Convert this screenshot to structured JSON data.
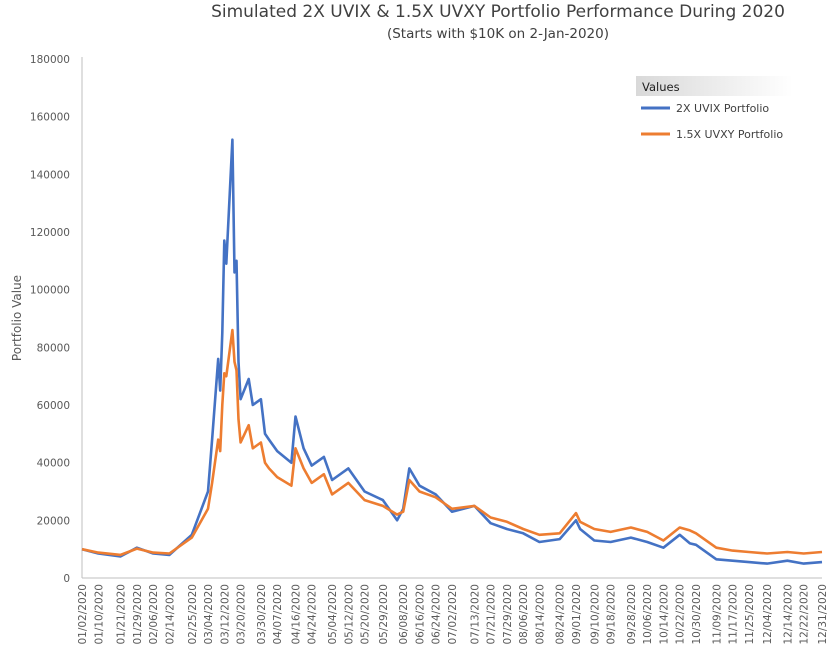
{
  "chart_data": {
    "type": "line",
    "title": "Simulated 2X UVIX & 1.5X UVXY Portfolio Performance During 2020",
    "subtitle": "(Starts with $10K on 2-Jan-2020)",
    "xlabel": "",
    "ylabel": "Portfolio Value",
    "ylim": [
      0,
      180000
    ],
    "yticks": [
      0,
      20000,
      40000,
      60000,
      80000,
      100000,
      120000,
      140000,
      160000,
      180000
    ],
    "grid": false,
    "legend_title": "Values",
    "legend_position": "top-right",
    "x_tick_labels": [
      "01/02/2020",
      "01/10/2020",
      "01/21/2020",
      "01/29/2020",
      "02/06/2020",
      "02/14/2020",
      "02/25/2020",
      "03/04/2020",
      "03/12/2020",
      "03/20/2020",
      "03/30/2020",
      "04/07/2020",
      "04/16/2020",
      "04/24/2020",
      "05/04/2020",
      "05/12/2020",
      "05/20/2020",
      "05/29/2020",
      "06/08/2020",
      "06/16/2020",
      "06/24/2020",
      "07/02/2020",
      "07/13/2020",
      "07/21/2020",
      "07/29/2020",
      "08/06/2020",
      "08/14/2020",
      "08/24/2020",
      "09/01/2020",
      "09/10/2020",
      "09/18/2020",
      "09/28/2020",
      "10/06/2020",
      "10/14/2020",
      "10/22/2020",
      "10/30/2020",
      "11/09/2020",
      "11/17/2020",
      "11/25/2020",
      "12/04/2020",
      "12/14/2020",
      "12/22/2020",
      "12/31/2020"
    ],
    "x": [
      "01/02/2020",
      "01/10/2020",
      "01/21/2020",
      "01/29/2020",
      "02/06/2020",
      "02/14/2020",
      "02/25/2020",
      "03/04/2020",
      "03/06/2020",
      "03/09/2020",
      "03/10/2020",
      "03/11/2020",
      "03/12/2020",
      "03/13/2020",
      "03/16/2020",
      "03/17/2020",
      "03/18/2020",
      "03/19/2020",
      "03/20/2020",
      "03/24/2020",
      "03/26/2020",
      "03/30/2020",
      "04/01/2020",
      "04/03/2020",
      "04/07/2020",
      "04/14/2020",
      "04/16/2020",
      "04/20/2020",
      "04/24/2020",
      "04/30/2020",
      "05/04/2020",
      "05/12/2020",
      "05/20/2020",
      "05/29/2020",
      "06/05/2020",
      "06/08/2020",
      "06/11/2020",
      "06/16/2020",
      "06/24/2020",
      "07/02/2020",
      "07/13/2020",
      "07/21/2020",
      "07/29/2020",
      "08/06/2020",
      "08/14/2020",
      "08/24/2020",
      "09/01/2020",
      "09/03/2020",
      "09/10/2020",
      "09/18/2020",
      "09/28/2020",
      "10/06/2020",
      "10/14/2020",
      "10/22/2020",
      "10/27/2020",
      "10/30/2020",
      "11/09/2020",
      "11/17/2020",
      "11/25/2020",
      "12/04/2020",
      "12/14/2020",
      "12/22/2020",
      "12/31/2020"
    ],
    "series": [
      {
        "name": "2X  UVIX Portfolio",
        "color": "#4472C4",
        "values": [
          10000,
          8500,
          7500,
          10500,
          8500,
          8000,
          15000,
          30000,
          48000,
          76000,
          65000,
          85000,
          117000,
          109000,
          152000,
          106000,
          110000,
          75000,
          62000,
          69000,
          60000,
          62000,
          50000,
          48000,
          44000,
          40000,
          56000,
          45000,
          39000,
          42000,
          34000,
          38000,
          30000,
          27000,
          20000,
          24000,
          38000,
          32000,
          29000,
          23000,
          25000,
          19000,
          17000,
          15500,
          12500,
          13500,
          20000,
          17000,
          13000,
          12500,
          14000,
          12500,
          10500,
          15000,
          12000,
          11500,
          6500,
          6000,
          5500,
          5000,
          6000,
          5000,
          5500
        ]
      },
      {
        "name": "1.5X UVXY Portfolio",
        "color": "#ED7D31",
        "values": [
          10000,
          8800,
          8000,
          10200,
          8800,
          8500,
          14000,
          24000,
          33000,
          48000,
          44000,
          60000,
          71000,
          70000,
          86000,
          75000,
          72000,
          55000,
          47000,
          53000,
          45000,
          47000,
          40000,
          38000,
          35000,
          32000,
          45000,
          38000,
          33000,
          36000,
          29000,
          33000,
          27000,
          25000,
          22000,
          23000,
          34000,
          30000,
          28000,
          24000,
          25000,
          21000,
          19500,
          17000,
          15000,
          15500,
          22500,
          19500,
          17000,
          16000,
          17500,
          16000,
          13000,
          17500,
          16500,
          15500,
          10500,
          9500,
          9000,
          8500,
          9000,
          8500,
          9000
        ]
      }
    ]
  }
}
